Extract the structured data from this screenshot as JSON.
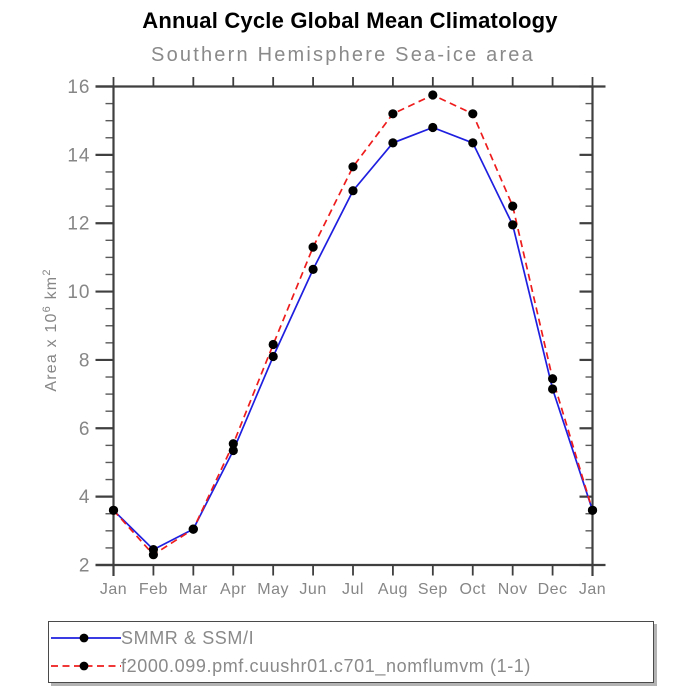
{
  "chart_data": {
    "type": "line",
    "title": "Annual Cycle Global Mean Climatology",
    "subtitle": "Southern Hemisphere Sea-ice area",
    "categories": [
      "Jan",
      "Feb",
      "Mar",
      "Apr",
      "May",
      "Jun",
      "Jul",
      "Aug",
      "Sep",
      "Oct",
      "Nov",
      "Dec",
      "Jan"
    ],
    "ylabel": "Area x 10^6 km^2",
    "ylabel_parts": [
      [
        "Area x 10",
        false
      ],
      [
        "6",
        true
      ],
      [
        " km",
        false
      ],
      [
        "2",
        true
      ]
    ],
    "ylim": [
      2,
      16
    ],
    "y_major_ticks": [
      2,
      4,
      6,
      8,
      10,
      12,
      14,
      16
    ],
    "y_minor_step": 0.5,
    "grid": false,
    "legend_position": "bottom",
    "marker_color": "#000000",
    "axis_color": "#3f3f3f",
    "text_color": "#868686",
    "series": [
      {
        "name": "SMMR & SSM/I",
        "color": "#1f1fe0",
        "line_style": "solid",
        "values": [
          3.6,
          2.45,
          3.05,
          5.35,
          8.1,
          10.65,
          12.95,
          14.35,
          14.8,
          14.35,
          11.95,
          7.15,
          3.6
        ]
      },
      {
        "name": "f2000.099.pmf.cuushr01.c701_nomflumvm (1-1)",
        "color": "#ee1c1c",
        "line_style": "dashed",
        "values": [
          3.6,
          2.3,
          3.05,
          5.55,
          8.45,
          11.3,
          13.65,
          15.2,
          15.75,
          15.2,
          12.5,
          7.45,
          3.6
        ]
      }
    ]
  }
}
